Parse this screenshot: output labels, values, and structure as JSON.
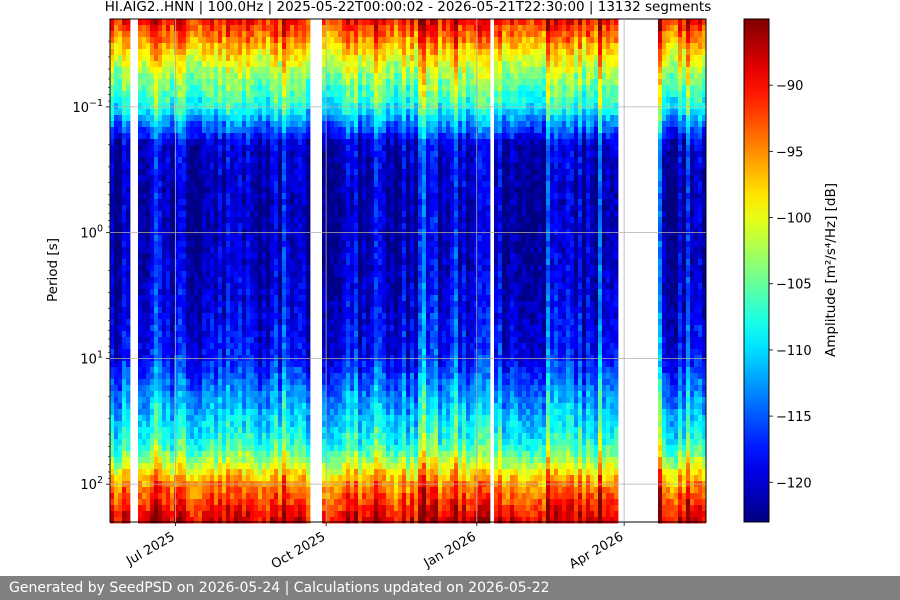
{
  "chart_data": {
    "type": "heatmap",
    "title": "HI.AIG2..HNN | 100.0Hz | 2025-05-22T00:00:02 - 2026-05-21T22:30:00 | 13132 segments",
    "xlabel": "",
    "ylabel": "Period [s]",
    "x_range": [
      "2025-05-22",
      "2026-05-21"
    ],
    "x_ticks": [
      {
        "date": "2025-07-01",
        "label": "Jul 2025"
      },
      {
        "date": "2025-10-01",
        "label": "Oct 2025"
      },
      {
        "date": "2026-01-01",
        "label": "Jan 2026"
      },
      {
        "date": "2026-04-01",
        "label": "Apr 2026"
      }
    ],
    "y_scale": "log",
    "y_range": [
      0.02,
      200
    ],
    "y_inverted": true,
    "y_ticks": [
      {
        "value": 0.1,
        "label": "10",
        "exp": "−1"
      },
      {
        "value": 1,
        "label": "10",
        "exp": "0"
      },
      {
        "value": 10,
        "label": "10",
        "exp": "1"
      },
      {
        "value": 100,
        "label": "10",
        "exp": "2"
      }
    ],
    "grid": true,
    "colormap": "jet",
    "colorbar": {
      "label": "Amplitude [m²/s⁴/Hz] [dB]",
      "range": [
        -123,
        -85
      ],
      "ticks": [
        -90,
        -95,
        -100,
        -105,
        -110,
        -115,
        -120
      ],
      "tick_labels": [
        "−90",
        "−95",
        "−100",
        "−105",
        "−110",
        "−115",
        "−120"
      ]
    },
    "data_gaps": [
      [
        "2025-06-04",
        "2025-06-07"
      ],
      [
        "2025-06-12",
        "2025-06-13"
      ],
      [
        "2025-09-21",
        "2025-09-29"
      ],
      [
        "2026-01-09",
        "2026-01-11"
      ],
      [
        "2026-03-28",
        "2026-04-01"
      ],
      [
        "2026-04-01",
        "2026-04-21"
      ]
    ],
    "amplitude_profile": {
      "period": [
        0.02,
        0.05,
        0.1,
        0.2,
        0.5,
        1,
        3,
        10,
        20,
        50,
        100,
        200
      ],
      "amplitude_db": [
        -90,
        -102,
        -108,
        -120,
        -121,
        -121,
        -120,
        -118,
        -113,
        -107,
        -95,
        -88
      ]
    }
  },
  "footer": {
    "text": "Generated by SeedPSD on 2026-05-24 | Calculations updated on 2026-05-22"
  }
}
